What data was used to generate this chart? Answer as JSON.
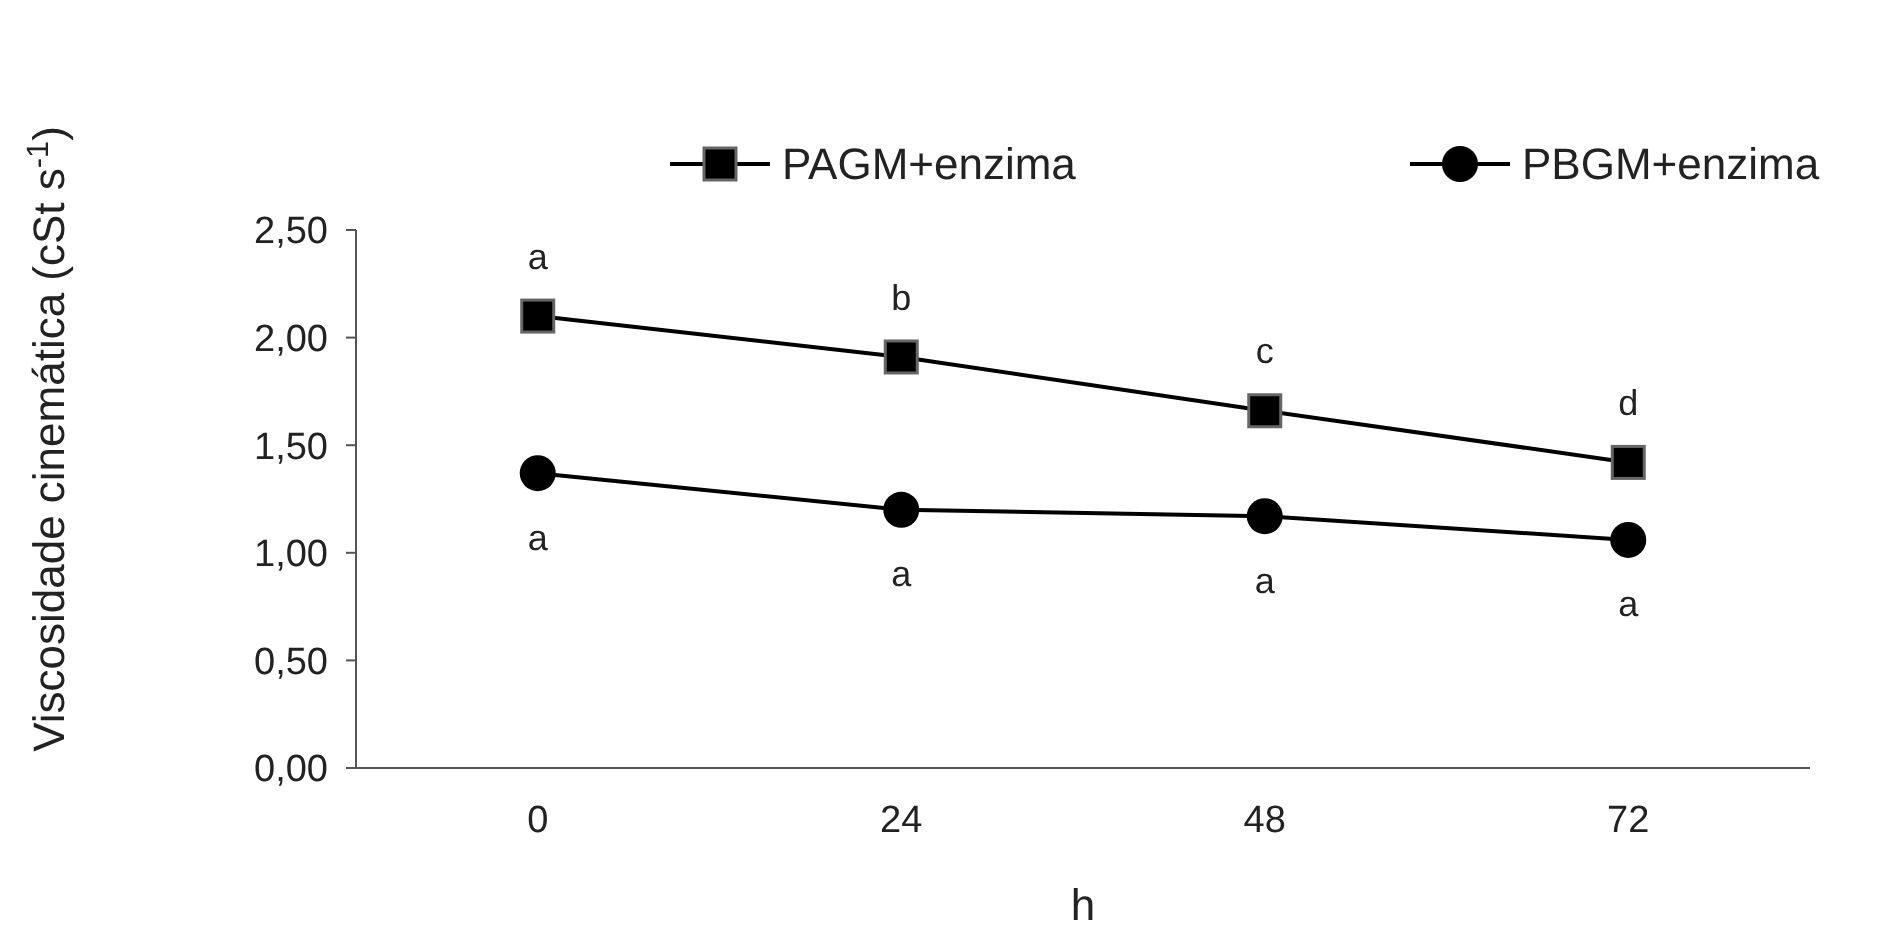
{
  "chart_data": {
    "type": "line",
    "xlabel": "h",
    "ylabel": "Viscosidade cinemática (cSt s$^{-1}$)",
    "categories": [
      "0",
      "24",
      "48",
      "72"
    ],
    "series": [
      {
        "name": "PAGM+enzima",
        "color": "#000000",
        "marker": "square",
        "values": [
          2.1,
          1.91,
          1.66,
          1.42
        ]
      },
      {
        "name": "PBGM+enzima",
        "color": "#000000",
        "marker": "circle",
        "values": [
          1.37,
          1.2,
          1.17,
          1.06
        ]
      }
    ],
    "ylim": [
      0,
      2.5
    ],
    "yticks": [
      {
        "value": 0,
        "label": "0,00"
      },
      {
        "value": 0.5,
        "label": "0,50"
      },
      {
        "value": 1,
        "label": "1,00"
      },
      {
        "value": 1.5,
        "label": "1,50"
      },
      {
        "value": 2,
        "label": "2,00"
      },
      {
        "value": 2.5,
        "label": "2,50"
      }
    ],
    "grid": false,
    "legend": "top right",
    "line_style": "solid",
    "annotations": [
      {
        "text": "a",
        "x": "0",
        "y": 2.1
      },
      {
        "text": "b",
        "x": "24",
        "y": 1.91
      },
      {
        "text": "c",
        "x": "48",
        "y": 1.66
      },
      {
        "text": "d",
        "x": "72",
        "y": 1.42
      },
      {
        "text": "a",
        "x": "0",
        "y": 1.37
      },
      {
        "text": "a",
        "x": "24",
        "y": 1.2
      },
      {
        "text": "a",
        "x": "48",
        "y": 1.17
      },
      {
        "text": "a",
        "x": "72",
        "y": 1.06
      }
    ]
  }
}
